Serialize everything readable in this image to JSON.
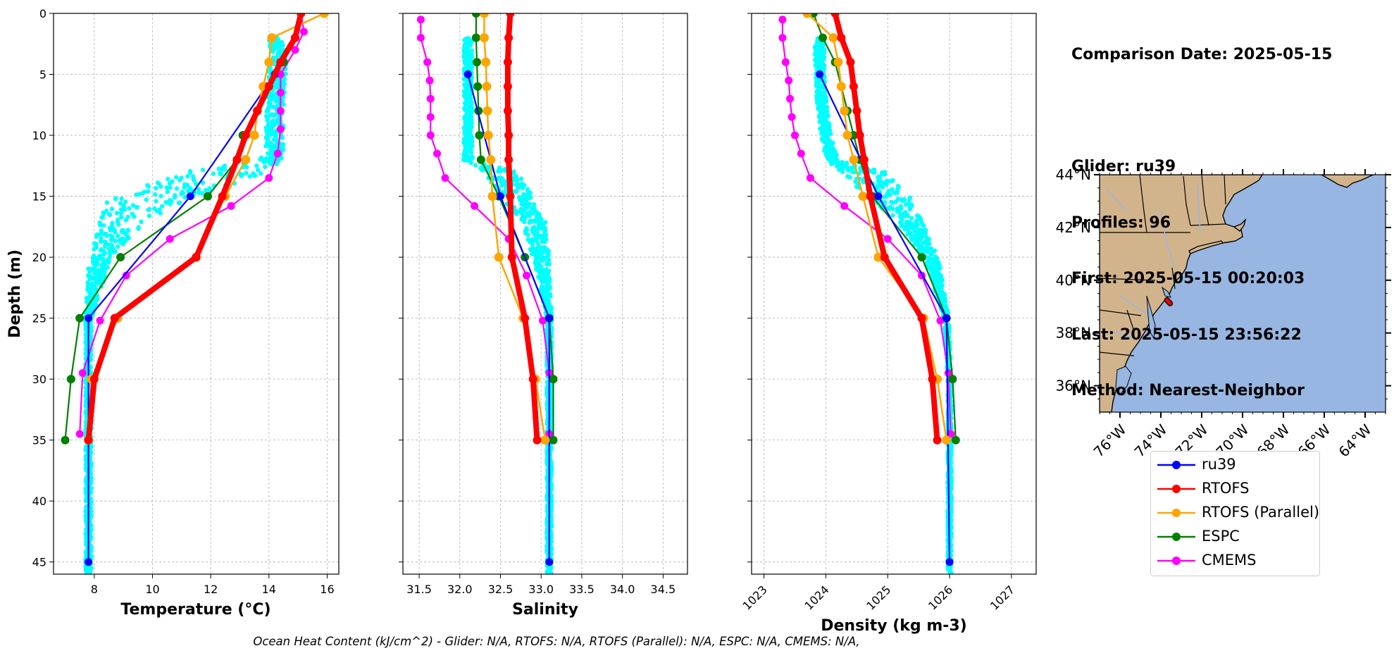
{
  "info": {
    "title": "Comparison Date: 2025-05-15",
    "glider": "Glider: ru39",
    "profiles": "Profiles: 96",
    "first": "First: 2025-05-15 00:20:03",
    "last": "Last: 2025-05-15 23:56:22",
    "method": "Method: Nearest-Neighbor"
  },
  "footer": "Ocean Heat Content (kJ/cm^2) - Glider: N/A,  RTOFS: N/A,  RTOFS (Parallel): N/A,  ESPC: N/A,  CMEMS: N/A,",
  "colors": {
    "ru39": "#0000ff",
    "RTOFS": "#ff0000",
    "RTOFS (Parallel)": "#ffa500",
    "ESPC": "#008000",
    "CMEMS": "#ff00ff",
    "glider_scatter": "#00ffff",
    "land": "#d2b48c",
    "ocean": "#97b6e1",
    "rivers": "#97b6e1",
    "grid": "#b0b0b0"
  },
  "legend": [
    {
      "label": "ru39",
      "color": "#0000ff"
    },
    {
      "label": "RTOFS",
      "color": "#ff0000"
    },
    {
      "label": "RTOFS (Parallel)",
      "color": "#ffa500"
    },
    {
      "label": "ESPC",
      "color": "#008000"
    },
    {
      "label": "CMEMS",
      "color": "#ff00ff"
    }
  ],
  "chart_data": [
    {
      "type": "line",
      "xlabel": "Temperature (°C)",
      "ylabel": "Depth (m)",
      "xlim": [
        6.6,
        16.4
      ],
      "ylim": [
        46,
        0
      ],
      "grid": true,
      "xticks": [
        8,
        10,
        12,
        14,
        16
      ],
      "yticks": [
        0,
        5,
        10,
        15,
        20,
        25,
        30,
        35,
        40,
        45
      ],
      "series": [
        {
          "name": "ru39",
          "depth": [
            5,
            15,
            25,
            45
          ],
          "values": [
            14.2,
            11.3,
            7.8,
            7.8
          ]
        },
        {
          "name": "RTOFS",
          "depth": [
            0,
            2,
            4,
            6,
            8,
            10,
            12,
            15,
            20,
            25,
            30,
            35
          ],
          "values": [
            15.1,
            14.9,
            14.4,
            14.0,
            13.6,
            13.2,
            12.9,
            12.4,
            11.5,
            8.7,
            8.0,
            7.8
          ]
        },
        {
          "name": "RTOFS (Parallel)",
          "depth": [
            0,
            2,
            4,
            6,
            8,
            10,
            12,
            15,
            20,
            25,
            30,
            35
          ],
          "values": [
            15.9,
            14.1,
            14.0,
            13.8,
            13.6,
            13.5,
            13.2,
            12.5,
            11.5,
            8.8,
            7.9,
            7.8
          ]
        },
        {
          "name": "ESPC",
          "depth": [
            0,
            2,
            4,
            6,
            8,
            10,
            12,
            15,
            20,
            25,
            30,
            35
          ],
          "values": [
            15.1,
            14.9,
            14.5,
            13.9,
            13.6,
            13.1,
            12.9,
            11.9,
            8.9,
            7.5,
            7.2,
            7.0
          ]
        },
        {
          "name": "CMEMS",
          "depth": [
            0,
            1.5,
            3,
            5,
            6.5,
            8,
            9.5,
            11.5,
            13.5,
            15.8,
            18.5,
            21.5,
            25.2,
            29.5,
            34.5
          ],
          "values": [
            15.1,
            15.2,
            14.9,
            14.4,
            14.4,
            14.4,
            14.4,
            14.3,
            14.0,
            12.7,
            10.6,
            9.1,
            8.2,
            7.6,
            7.5
          ]
        }
      ]
    },
    {
      "type": "line",
      "xlabel": "Salinity",
      "xlim": [
        31.3,
        34.8
      ],
      "ylim": [
        46,
        0
      ],
      "grid": true,
      "xticks": [
        31.5,
        32.0,
        32.5,
        33.0,
        33.5,
        34.0,
        34.5
      ],
      "series": [
        {
          "name": "ru39",
          "depth": [
            5,
            15,
            25,
            45
          ],
          "values": [
            32.1,
            32.5,
            33.1,
            33.1
          ]
        },
        {
          "name": "RTOFS",
          "depth": [
            0,
            2,
            4,
            6,
            8,
            10,
            12,
            15,
            20,
            25,
            30,
            35
          ],
          "values": [
            32.62,
            32.6,
            32.59,
            32.59,
            32.59,
            32.6,
            32.6,
            32.62,
            32.64,
            32.8,
            32.9,
            32.95
          ]
        },
        {
          "name": "RTOFS (Parallel)",
          "depth": [
            0,
            2,
            4,
            6,
            8,
            10,
            12,
            15,
            20,
            25,
            30,
            35
          ],
          "values": [
            32.3,
            32.3,
            32.32,
            32.33,
            32.34,
            32.35,
            32.38,
            32.4,
            32.48,
            32.78,
            32.93,
            33.05
          ]
        },
        {
          "name": "ESPC",
          "depth": [
            0,
            2,
            4,
            6,
            8,
            10,
            12,
            15,
            20,
            25,
            30,
            35
          ],
          "values": [
            32.2,
            32.2,
            32.21,
            32.22,
            32.23,
            32.24,
            32.26,
            32.48,
            32.8,
            33.1,
            33.15,
            33.15
          ]
        },
        {
          "name": "CMEMS",
          "depth": [
            0.5,
            2,
            4,
            5.5,
            7,
            8.5,
            10,
            11.5,
            13.5,
            15.8,
            18.5,
            21.5,
            25.2,
            29.5,
            34.5
          ],
          "values": [
            31.52,
            31.52,
            31.6,
            31.63,
            31.64,
            31.64,
            31.64,
            31.72,
            31.82,
            32.18,
            32.6,
            32.82,
            33.02,
            33.1,
            33.1
          ]
        }
      ]
    },
    {
      "type": "line",
      "xlabel": "Density (kg m-3)",
      "xlim": [
        1022.8,
        1027.4
      ],
      "ylim": [
        46,
        0
      ],
      "grid": true,
      "xticks": [
        1023,
        1024,
        1025,
        1026,
        1027
      ],
      "series": [
        {
          "name": "ru39",
          "depth": [
            5,
            15,
            25,
            45
          ],
          "values": [
            1023.9,
            1024.85,
            1025.95,
            1026.0
          ]
        },
        {
          "name": "RTOFS",
          "depth": [
            0,
            2,
            4,
            6,
            8,
            10,
            12,
            15,
            20,
            25,
            30,
            35
          ],
          "values": [
            1024.15,
            1024.25,
            1024.4,
            1024.45,
            1024.5,
            1024.55,
            1024.62,
            1024.72,
            1024.95,
            1025.55,
            1025.72,
            1025.8
          ]
        },
        {
          "name": "RTOFS (Parallel)",
          "depth": [
            0,
            2,
            4,
            6,
            8,
            10,
            12,
            15,
            20,
            25,
            30,
            35
          ],
          "values": [
            1023.7,
            1024.12,
            1024.2,
            1024.25,
            1024.3,
            1024.35,
            1024.45,
            1024.6,
            1024.85,
            1025.58,
            1025.8,
            1025.95
          ]
        },
        {
          "name": "ESPC",
          "depth": [
            0,
            2,
            4,
            6,
            8,
            10,
            12,
            15,
            20,
            25,
            30,
            35
          ],
          "values": [
            1023.8,
            1023.95,
            1024.15,
            1024.25,
            1024.35,
            1024.45,
            1024.55,
            1024.75,
            1025.55,
            1025.95,
            1026.05,
            1026.1
          ]
        },
        {
          "name": "CMEMS",
          "depth": [
            0.5,
            2,
            4,
            5.5,
            7,
            8.5,
            10,
            11.5,
            13.5,
            15.8,
            18.5,
            21.5,
            25.2,
            29.5,
            34.5
          ],
          "values": [
            1023.3,
            1023.3,
            1023.35,
            1023.4,
            1023.42,
            1023.45,
            1023.5,
            1023.6,
            1023.75,
            1024.3,
            1025.0,
            1025.55,
            1025.85,
            1025.98,
            1026.02
          ]
        }
      ]
    },
    {
      "type": "map",
      "lat_ticks": [
        "36°N",
        "38°N",
        "40°N",
        "42°N",
        "44°N"
      ],
      "lon_ticks": [
        "76°W",
        "74°W",
        "72°W",
        "70°W",
        "68°W",
        "66°W",
        "64°W"
      ],
      "lat_range": [
        35,
        44
      ],
      "lon_range": [
        -77,
        -63
      ],
      "glider_track": {
        "lon": [
          -73.7,
          -73.55
        ],
        "lat": [
          39.25,
          39.12
        ]
      }
    }
  ]
}
